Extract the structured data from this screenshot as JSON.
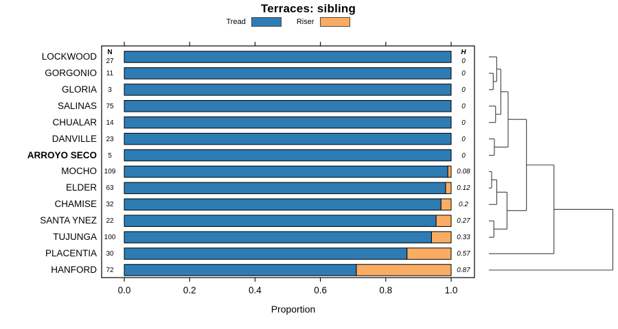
{
  "title": "Terraces: sibling",
  "legend": {
    "items": [
      {
        "label": "Tread",
        "color": "#2E7CB4"
      },
      {
        "label": "Riser",
        "color": "#FBAC63"
      }
    ]
  },
  "columns": {
    "n_header": "N",
    "h_header": "H"
  },
  "x_axis": {
    "label": "Proportion",
    "tick_labels": [
      "0.0",
      "0.2",
      "0.4",
      "0.6",
      "0.8",
      "1.0"
    ],
    "tick_values": [
      0,
      0.2,
      0.4,
      0.6,
      0.8,
      1.0
    ]
  },
  "chart_data": {
    "type": "bar",
    "orientation": "horizontal",
    "stacked": true,
    "title": "Terraces: sibling",
    "xlabel": "Proportion",
    "xlim": [
      0,
      1
    ],
    "grid": false,
    "categories": [
      "LOCKWOOD",
      "GORGONIO",
      "GLORIA",
      "SALINAS",
      "CHUALAR",
      "DANVILLE",
      "ARROYO SECO",
      "MOCHO",
      "ELDER",
      "CHAMISE",
      "SANTA YNEZ",
      "TUJUNGA",
      "PLACENTIA",
      "HANFORD"
    ],
    "bold_category": "ARROYO SECO",
    "n_values": [
      27,
      11,
      3,
      75,
      14,
      23,
      5,
      109,
      63,
      32,
      22,
      100,
      30,
      72
    ],
    "h_values": [
      "0",
      "0",
      "0",
      "0",
      "0",
      "0",
      "0",
      "0.08",
      "0.12",
      "0.2",
      "0.27",
      "0.33",
      "0.57",
      "0.87"
    ],
    "series": [
      {
        "name": "Tread",
        "color": "#2E7CB4",
        "values": [
          1,
          1,
          1,
          1,
          1,
          1,
          1,
          0.99,
          0.983,
          0.969,
          0.954,
          0.94,
          0.865,
          0.71
        ]
      },
      {
        "name": "Riser",
        "color": "#FBAC63",
        "values": [
          0,
          0,
          0,
          0,
          0,
          0,
          0,
          0.01,
          0.017,
          0.031,
          0.046,
          0.06,
          0.135,
          0.29
        ]
      }
    ],
    "dendrogram": {
      "note": "merge refs: negative = leaf index (1-based, top to bottom), positive = prior merge (1-based); h normalized 0..1 of root height",
      "merges": [
        {
          "a": -2,
          "b": -3,
          "h": 0.035
        },
        {
          "a": -1,
          "b": 1,
          "h": 0.063
        },
        {
          "a": -4,
          "b": -5,
          "h": 0.054
        },
        {
          "a": 2,
          "b": 3,
          "h": 0.096
        },
        {
          "a": -6,
          "b": -7,
          "h": 0.044
        },
        {
          "a": 4,
          "b": 5,
          "h": 0.155
        },
        {
          "a": -8,
          "b": -9,
          "h": 0.022
        },
        {
          "a": 7,
          "b": -10,
          "h": 0.063
        },
        {
          "a": -11,
          "b": -12,
          "h": 0.04
        },
        {
          "a": 8,
          "b": 9,
          "h": 0.146
        },
        {
          "a": 6,
          "b": 10,
          "h": 0.303
        },
        {
          "a": 11,
          "b": -13,
          "h": 0.525
        },
        {
          "a": 12,
          "b": -14,
          "h": 1.0
        }
      ]
    }
  }
}
